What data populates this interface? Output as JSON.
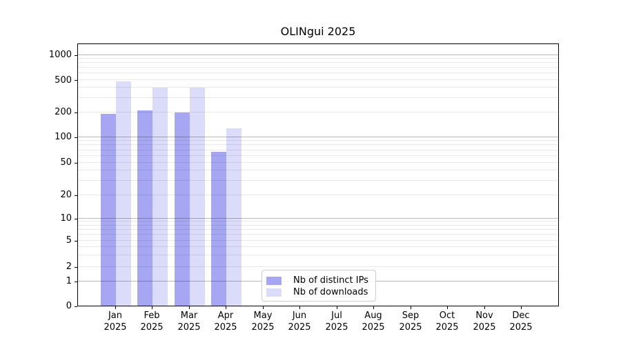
{
  "title": "OLINgui 2025",
  "colors": {
    "distinct_ips": "#a6a6f2",
    "downloads": "#dbdbfa",
    "spine": "#000000",
    "legend_border": "#cccccc"
  },
  "legend": {
    "items": [
      {
        "label": "Nb of distinct IPs",
        "color_key": "distinct_ips"
      },
      {
        "label": "Nb of downloads",
        "color_key": "downloads"
      }
    ]
  },
  "x_axis": {
    "months": [
      "Jan",
      "Feb",
      "Mar",
      "Apr",
      "May",
      "Jun",
      "Jul",
      "Aug",
      "Sep",
      "Oct",
      "Nov",
      "Dec"
    ],
    "year": "2025"
  },
  "y_axis": {
    "tick_labels": [
      "0",
      "1",
      "2",
      "5",
      "10",
      "20",
      "50",
      "100",
      "200",
      "500",
      "1000"
    ],
    "tick_values": [
      0,
      1,
      2,
      5,
      10,
      20,
      50,
      100,
      200,
      500,
      1000
    ]
  },
  "chart_data": {
    "type": "bar",
    "title": "OLINgui 2025",
    "categories": [
      "Jan 2025",
      "Feb 2025",
      "Mar 2025",
      "Apr 2025",
      "May 2025",
      "Jun 2025",
      "Jul 2025",
      "Aug 2025",
      "Sep 2025",
      "Oct 2025",
      "Nov 2025",
      "Dec 2025"
    ],
    "series": [
      {
        "name": "Nb of distinct IPs",
        "color": "#a6a6f2",
        "values": [
          190,
          210,
          195,
          66,
          0,
          0,
          0,
          0,
          0,
          0,
          0,
          0
        ]
      },
      {
        "name": "Nb of downloads",
        "color": "#dbdbfa",
        "values": [
          480,
          400,
          400,
          125,
          0,
          0,
          0,
          0,
          0,
          0,
          0,
          0
        ]
      }
    ],
    "xlabel": "",
    "ylabel": "",
    "yscale": "symlog",
    "yticks": [
      0,
      1,
      2,
      5,
      10,
      20,
      50,
      100,
      200,
      500,
      1000
    ],
    "ylim": [
      0,
      1400
    ],
    "grid": "both",
    "legend_position": "lower center-left inside"
  }
}
